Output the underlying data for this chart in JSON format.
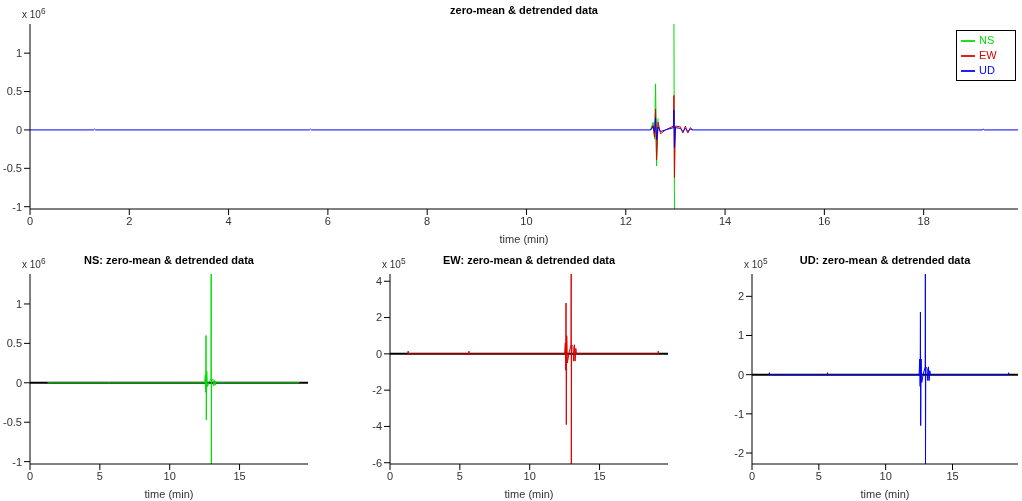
{
  "chart_data": [
    {
      "type": "line",
      "title": "zero-mean & detrended data",
      "xlabel": "time (min)",
      "annotations": [
        "x 10$^{6}$"
      ],
      "xlim": [
        0,
        19.9
      ],
      "xticks": [
        0,
        2,
        4,
        6,
        8,
        10,
        12,
        14,
        16,
        18
      ],
      "ylim": [
        -1.03,
        1.38
      ],
      "yticks": [
        -1,
        -0.5,
        0,
        0.5,
        1
      ],
      "legend": "top right",
      "x": [
        0,
        1.28,
        1.3,
        1.32,
        5.63,
        5.65,
        5.67,
        12.5,
        12.55,
        12.58,
        12.6,
        12.62,
        12.65,
        12.7,
        12.8,
        12.96,
        12.97,
        12.98,
        13.0,
        13.1,
        13.15,
        13.2,
        13.25,
        13.3,
        13.35,
        19.18,
        19.2,
        19.22,
        19.9
      ],
      "series": [
        {
          "name": "NS",
          "color": "#00dd00",
          "values": [
            null,
            null,
            null,
            null,
            null,
            null,
            null,
            0,
            0.1,
            -0.12,
            0.6,
            -0.47,
            0.15,
            null,
            null,
            null,
            1.38,
            -1.03,
            null,
            null,
            null,
            null,
            null,
            null,
            null,
            null,
            null,
            null,
            null
          ]
        },
        {
          "name": "EW",
          "color": "#dd0000",
          "values": [
            null,
            null,
            null,
            null,
            null,
            null,
            null,
            0,
            0.06,
            -0.09,
            0.27,
            -0.39,
            0.1,
            -0.05,
            0,
            0.05,
            0.45,
            -0.62,
            0.05,
            0.04,
            -0.04,
            0.05,
            -0.04,
            0.03,
            0,
            null,
            null,
            null,
            null
          ]
        },
        {
          "name": "UD",
          "color": "#0000ff",
          "values": [
            0,
            0,
            0.01,
            0,
            0,
            0.01,
            0,
            0,
            0.04,
            -0.03,
            0.16,
            -0.13,
            0.04,
            -0.02,
            0,
            0.03,
            0.26,
            -0.23,
            0.03,
            0.02,
            -0.02,
            0.02,
            -0.02,
            0.01,
            0,
            0,
            0.01,
            0,
            0
          ]
        }
      ]
    },
    {
      "type": "line",
      "title": "NS: zero-mean & detrended data",
      "xlabel": "time (min)",
      "annotations": [
        "x 10$^{6}$"
      ],
      "xlim": [
        0,
        19.9
      ],
      "xticks": [
        0,
        5,
        10,
        15
      ],
      "ylim": [
        -1.03,
        1.38
      ],
      "yticks": [
        -1,
        -0.5,
        0,
        0.5,
        1
      ],
      "series": [
        {
          "color": "#00dd00",
          "x": [
            1.28,
            1.3,
            1.32,
            5.63,
            5.65,
            5.67,
            12.5,
            12.55,
            12.58,
            12.6,
            12.62,
            12.65,
            12.7,
            12.8,
            12.96,
            12.97,
            12.98,
            13.0,
            13.1,
            13.15,
            13.2,
            13.25,
            13.3,
            13.35,
            19.18,
            19.2,
            19.22
          ],
          "values": [
            0,
            0.01,
            0,
            0,
            0.01,
            0,
            0,
            0.1,
            -0.12,
            0.6,
            -0.47,
            0.15,
            -0.05,
            0,
            0.05,
            1.38,
            -1.03,
            0.05,
            0.04,
            -0.04,
            0.03,
            -0.03,
            0.02,
            0,
            0,
            0.01,
            0
          ]
        }
      ],
      "ref_lines": [
        {
          "axis": "y",
          "value": 0,
          "color": "#000000"
        }
      ]
    },
    {
      "type": "line",
      "title": "EW: zero-mean & detrended data",
      "xlabel": "time (min)",
      "annotations": [
        "x 10$^{5}$"
      ],
      "xlim": [
        0,
        19.9
      ],
      "xticks": [
        0,
        5,
        10,
        15
      ],
      "ylim": [
        -6.07,
        4.4
      ],
      "yticks": [
        -6,
        -4,
        -2,
        0,
        2,
        4
      ],
      "series": [
        {
          "color": "#dd0000",
          "x": [
            1.28,
            1.3,
            1.32,
            5.63,
            5.65,
            5.67,
            12.5,
            12.55,
            12.58,
            12.6,
            12.62,
            12.65,
            12.7,
            12.8,
            12.96,
            12.97,
            12.98,
            13.0,
            13.1,
            13.15,
            13.2,
            13.25,
            13.3,
            13.35,
            19.18,
            19.2,
            19.22
          ],
          "values": [
            0,
            0.15,
            0,
            0,
            0.15,
            0,
            0,
            0.6,
            -0.9,
            2.8,
            -3.9,
            1.0,
            -0.5,
            0,
            0.5,
            4.4,
            -6.07,
            0.5,
            0.4,
            -0.4,
            0.5,
            -0.4,
            0.3,
            0,
            0,
            0.15,
            0
          ]
        }
      ],
      "ref_lines": [
        {
          "axis": "y",
          "value": 0,
          "color": "#000000"
        }
      ]
    },
    {
      "type": "line",
      "title": "UD: zero-mean & detrended data",
      "xlabel": "time (min)",
      "annotations": [
        "x 10$^{5}$"
      ],
      "xlim": [
        0,
        19.9
      ],
      "xticks": [
        0,
        5,
        10,
        15
      ],
      "ylim": [
        -2.28,
        2.57
      ],
      "yticks": [
        -2,
        -1,
        0,
        1,
        2
      ],
      "series": [
        {
          "color": "#0000ff",
          "x": [
            1.28,
            1.3,
            1.32,
            5.63,
            5.65,
            5.67,
            12.5,
            12.55,
            12.58,
            12.6,
            12.62,
            12.65,
            12.7,
            12.8,
            12.96,
            12.97,
            12.98,
            13.0,
            13.1,
            13.15,
            13.2,
            13.25,
            13.3,
            13.35,
            19.18,
            19.2,
            19.22
          ],
          "values": [
            0,
            0.05,
            0,
            0,
            0.05,
            0,
            0,
            0.4,
            -0.3,
            1.6,
            -1.3,
            0.4,
            -0.2,
            0,
            0.2,
            2.57,
            -2.28,
            0.2,
            0.15,
            -0.15,
            0.2,
            -0.15,
            0.1,
            0,
            0,
            0.05,
            0
          ]
        }
      ],
      "ref_lines": [
        {
          "axis": "y",
          "value": 0,
          "color": "#000000"
        }
      ]
    }
  ]
}
